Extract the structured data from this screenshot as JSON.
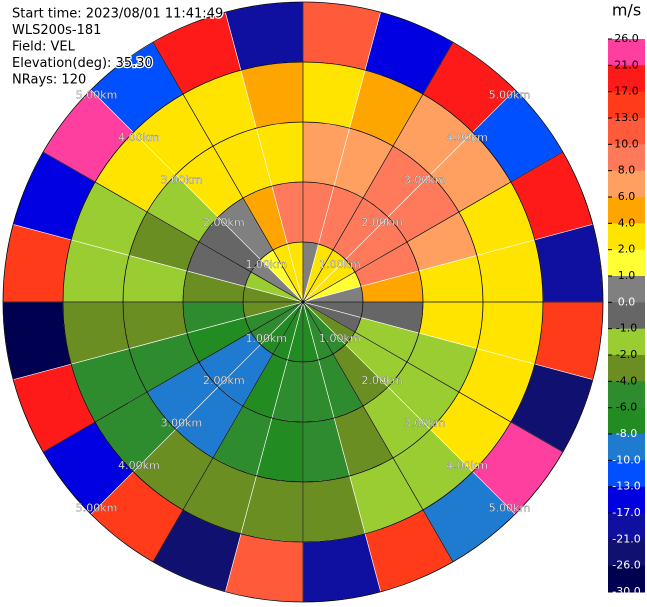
{
  "chart_data": {
    "type": "ppi",
    "header": [
      "Start time: 2023/08/01 11:41:49",
      "WLS200s-181",
      "Field: VEL",
      "Elevation(deg): 35.30",
      "NRays: 120"
    ],
    "colorbar_title": "m/s",
    "rlim": [
      0,
      5
    ],
    "rings": [
      {
        "value": 1,
        "label": "1.00km"
      },
      {
        "value": 2,
        "label": "2.00km"
      },
      {
        "value": 3,
        "label": "3.00km"
      },
      {
        "value": 4,
        "label": "4.00km"
      },
      {
        "value": 5,
        "label": "5.00km"
      }
    ],
    "range_bins": [
      0,
      1,
      2,
      3,
      4,
      5
    ],
    "levels": [
      {
        "value": 26,
        "label": "26.0"
      },
      {
        "value": 21,
        "label": "21.0"
      },
      {
        "value": 17,
        "label": "17.0"
      },
      {
        "value": 13,
        "label": "13.0"
      },
      {
        "value": 10,
        "label": "10.0"
      },
      {
        "value": 8,
        "label": "8.0"
      },
      {
        "value": 6,
        "label": "6.0"
      },
      {
        "value": 4,
        "label": "4.0"
      },
      {
        "value": 2,
        "label": "2.0"
      },
      {
        "value": 1,
        "label": "1.0"
      },
      {
        "value": 0,
        "label": "0.0"
      },
      {
        "value": -1,
        "label": "-1.0"
      },
      {
        "value": -2,
        "label": "-2.0"
      },
      {
        "value": -4,
        "label": "-4.0"
      },
      {
        "value": -6,
        "label": "-6.0"
      },
      {
        "value": -8,
        "label": "-8.0"
      },
      {
        "value": -10,
        "label": "-10.0"
      },
      {
        "value": -13,
        "label": "-13.0"
      },
      {
        "value": -17,
        "label": "-17.0"
      },
      {
        "value": -21,
        "label": "-21.0"
      },
      {
        "value": -26,
        "label": "-26.0"
      },
      {
        "value": -30,
        "label": "-30.0"
      }
    ],
    "colors": [
      "#ff3fa0",
      "#ff1a1a",
      "#ff3b1a",
      "#ff5a3a",
      "#ff7a5a",
      "#ffa060",
      "#ffa500",
      "#ffe400",
      "#ffff33",
      "#808080",
      "#666666",
      "#9acd32",
      "#6b8e23",
      "#2e8b2e",
      "#228b22",
      "#1e7bd0",
      "#0050ff",
      "#0000e0",
      "#1010a0",
      "#101070",
      "#000050"
    ],
    "values": [
      [
        0.5,
        9,
        7,
        3,
        12
      ],
      [
        3,
        9,
        7,
        5,
        -15
      ],
      [
        3,
        9,
        8,
        6,
        20
      ],
      [
        2,
        9,
        8,
        6,
        -12
      ],
      [
        1,
        9,
        7,
        3,
        18
      ],
      [
        0.5,
        4,
        3,
        3,
        -20
      ],
      [
        -0.5,
        -0.5,
        3,
        3,
        15
      ],
      [
        -0.5,
        -1.5,
        -1.5,
        3,
        -25
      ],
      [
        -3,
        -1.5,
        -1.5,
        3,
        22
      ],
      [
        -5,
        -3,
        -1.5,
        -1.5,
        -10
      ],
      [
        -5,
        -5,
        -3,
        -1.5,
        14
      ],
      [
        -7,
        -5,
        -5,
        -3,
        -18
      ],
      [
        -7,
        -5,
        -7,
        -3,
        11
      ],
      [
        -7,
        -7,
        -5,
        -3,
        -22
      ],
      [
        -7,
        -9,
        -9,
        -3,
        16
      ],
      [
        -5,
        -9,
        -9,
        -5,
        -14
      ],
      [
        -5,
        -7,
        -5,
        -5,
        19
      ],
      [
        -3,
        -5,
        -3,
        -3,
        -27
      ],
      [
        -3,
        -3,
        -1.5,
        -1.5,
        13
      ],
      [
        -1.5,
        -0.5,
        -3,
        -1.5,
        -16
      ],
      [
        0.5,
        -0.5,
        -1.5,
        3,
        21
      ],
      [
        1.5,
        0.5,
        3,
        3,
        -11
      ],
      [
        3,
        5,
        3,
        3,
        17
      ],
      [
        3,
        8,
        3,
        5,
        -19
      ]
    ]
  }
}
